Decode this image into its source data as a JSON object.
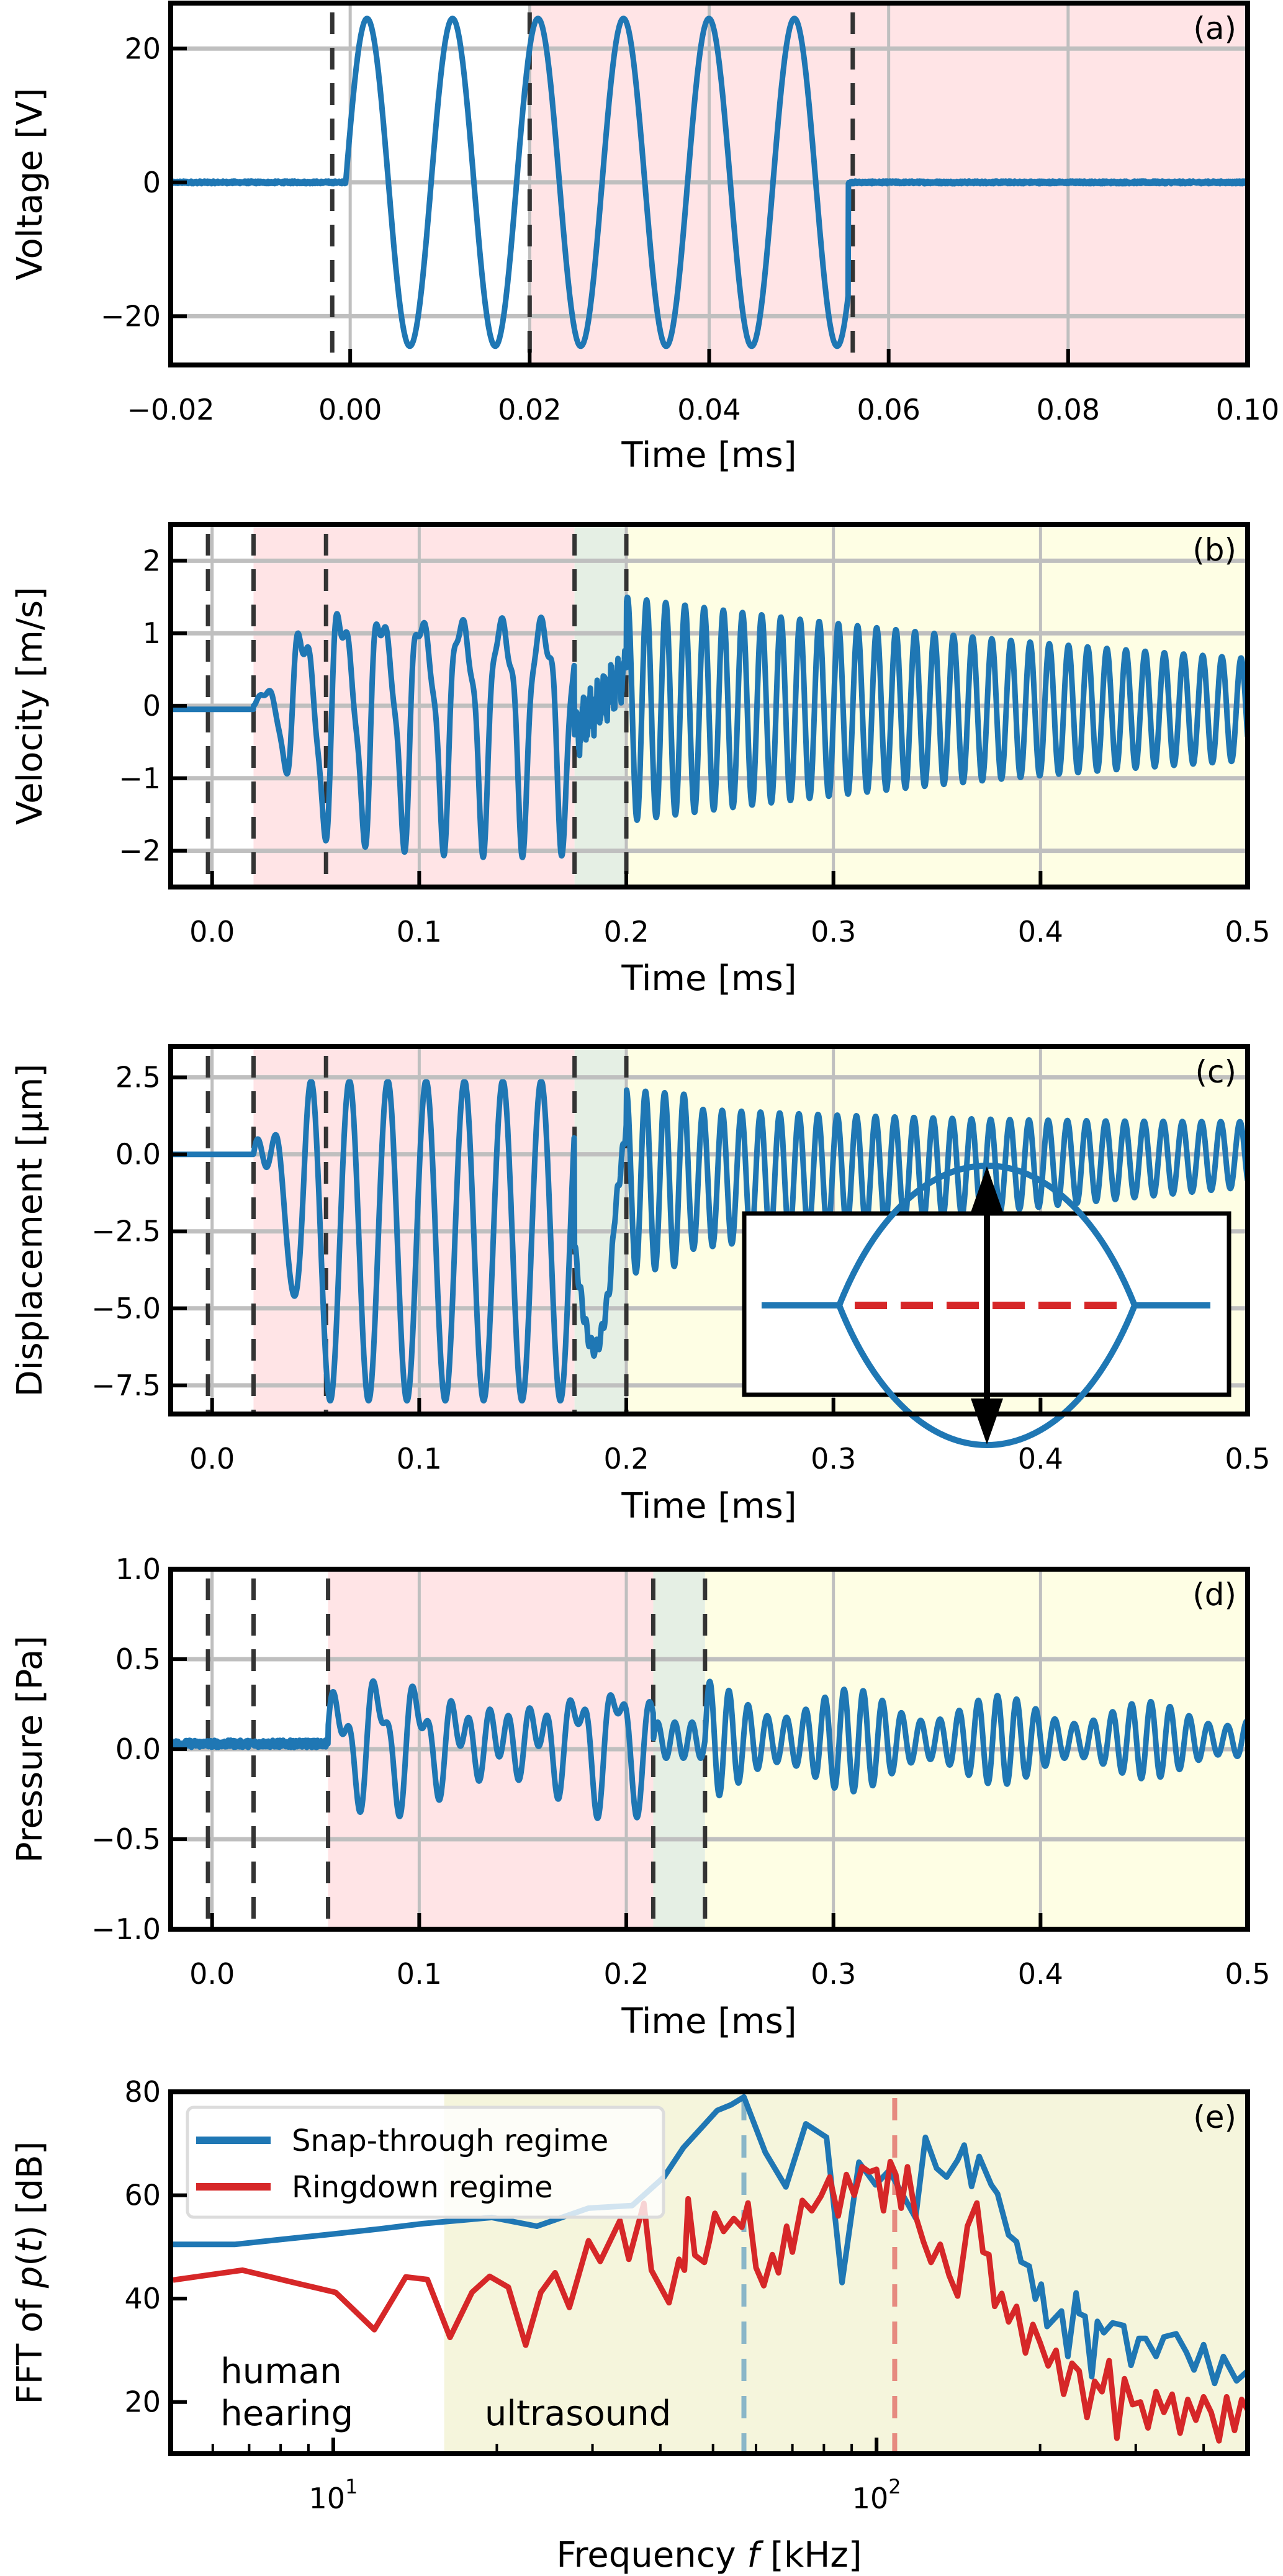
{
  "figure": {
    "colors": {
      "signal": "#1f77b4",
      "ringdown": "#d62728",
      "grid": "#bfbfbf",
      "vline": "#333333",
      "drive_region": "#ffe4e6",
      "snap_region": "#e5efe4",
      "ring_region": "#fefee4",
      "ultrasound_region": "#f5f5dc"
    }
  },
  "chart_data": [
    {
      "id": "a",
      "type": "line",
      "panel_label": "(a)",
      "xlabel": "Time [ms]",
      "ylabel": "Voltage [V]",
      "xlim": [
        -0.02,
        0.1
      ],
      "ylim": [
        -27.3,
        26.8
      ],
      "xticks": [
        -0.02,
        0.0,
        0.02,
        0.04,
        0.06,
        0.08,
        0.1
      ],
      "xtick_labels": [
        "−0.02",
        "0.00",
        "0.02",
        "0.04",
        "0.06",
        "0.08",
        "0.10"
      ],
      "yticks": [
        -20,
        0,
        20
      ],
      "ytick_labels": [
        "−20",
        "0",
        "20"
      ],
      "grid": true,
      "vlines": [
        -0.002,
        0.02,
        0.056
      ],
      "regions": [
        {
          "from": 0.02,
          "to": 0.1,
          "kind": "drive_region"
        }
      ],
      "series": [
        {
          "name": "voltage",
          "kind": "burst",
          "t_start": -0.0005,
          "t_end": 0.0555,
          "frequency_khz": 105,
          "amplitude": 24.5,
          "baseline": 0
        }
      ]
    },
    {
      "id": "b",
      "type": "line",
      "panel_label": "(b)",
      "xlabel": "Time [ms]",
      "ylabel": "Velocity [m/s]",
      "xlim": [
        -0.02,
        0.5
      ],
      "ylim": [
        -2.5,
        2.5
      ],
      "xticks": [
        0.0,
        0.1,
        0.2,
        0.3,
        0.4,
        0.5
      ],
      "xtick_labels": [
        "0.0",
        "0.1",
        "0.2",
        "0.3",
        "0.4",
        "0.5"
      ],
      "yticks": [
        -2,
        -1,
        0,
        1,
        2
      ],
      "ytick_labels": [
        "−2",
        "−1",
        "0",
        "1",
        "2"
      ],
      "grid": true,
      "vlines": [
        -0.002,
        0.02,
        0.055,
        0.175,
        0.2
      ],
      "regions": [
        {
          "from": 0.02,
          "to": 0.175,
          "kind": "drive_region"
        },
        {
          "from": 0.175,
          "to": 0.2,
          "kind": "snap_region"
        },
        {
          "from": 0.2,
          "to": 0.5,
          "kind": "ring_region"
        }
      ],
      "series": [
        {
          "name": "velocity",
          "kind": "response",
          "baseline": -0.05,
          "onset": 0.02,
          "drive_end": 0.175,
          "snap_end": 0.2,
          "drive_freq_khz": 52,
          "drive_harmonic_khz": 105,
          "drive_amp": 1.4,
          "harmonic_amp": 0.45,
          "snap_level": 0.15,
          "snap_amp": 0.3,
          "ring_freq_khz": 108,
          "ring_amp": 1.55,
          "ring_decay_ms": 0.38,
          "ring_offset": -0.05
        }
      ]
    },
    {
      "id": "c",
      "type": "line",
      "panel_label": "(c)",
      "xlabel": "Time [ms]",
      "ylabel": "Displacement [μm]",
      "xlim": [
        -0.02,
        0.5
      ],
      "ylim": [
        -8.43,
        3.5
      ],
      "xticks": [
        0.0,
        0.1,
        0.2,
        0.3,
        0.4,
        0.5
      ],
      "xtick_labels": [
        "0.0",
        "0.1",
        "0.2",
        "0.3",
        "0.4",
        "0.5"
      ],
      "yticks": [
        -7.5,
        -5.0,
        -2.5,
        0.0,
        2.5
      ],
      "ytick_labels": [
        "−7.5",
        "−5.0",
        "−2.5",
        "0.0",
        "2.5"
      ],
      "grid": true,
      "vlines": [
        -0.002,
        0.02,
        0.055,
        0.175,
        0.2
      ],
      "regions": [
        {
          "from": 0.02,
          "to": 0.175,
          "kind": "drive_region"
        },
        {
          "from": 0.175,
          "to": 0.2,
          "kind": "snap_region"
        },
        {
          "from": 0.2,
          "to": 0.5,
          "kind": "ring_region"
        }
      ],
      "series": [
        {
          "name": "displacement",
          "kind": "displacement",
          "baseline": 0.0,
          "onset": 0.02,
          "drive_end": 0.175,
          "snap_end": 0.2,
          "drive_freq_khz": 54,
          "drive_center": -2.8,
          "drive_amp": 5.2,
          "snap_min": -6.3,
          "ring_freq_khz": 108,
          "ring_amp": 2.5,
          "ring_center_start": -0.9,
          "ring_center_end": 0.0,
          "ring_decay_ms": 0.35
        }
      ],
      "inset": {
        "description": "buckled beam schematic: two curved states with flat ends, red dashed midline, double-headed vertical arrow",
        "beam_color": "#1f77b4",
        "midline_color": "#d62728",
        "arrow_color": "#000000"
      }
    },
    {
      "id": "d",
      "type": "line",
      "panel_label": "(d)",
      "xlabel": "Time [ms]",
      "ylabel": "Pressure [Pa]",
      "xlim": [
        -0.02,
        0.5
      ],
      "ylim": [
        -1.0,
        1.0
      ],
      "xticks": [
        0.0,
        0.1,
        0.2,
        0.3,
        0.4,
        0.5
      ],
      "xtick_labels": [
        "0.0",
        "0.1",
        "0.2",
        "0.3",
        "0.4",
        "0.5"
      ],
      "yticks": [
        -1.0,
        -0.5,
        0.0,
        0.5,
        1.0
      ],
      "ytick_labels": [
        "−1.0",
        "−0.5",
        "0.0",
        "0.5",
        "1.0"
      ],
      "grid": true,
      "vlines": [
        -0.002,
        0.02,
        0.056,
        0.213,
        0.238
      ],
      "regions": [
        {
          "from": 0.056,
          "to": 0.213,
          "kind": "drive_region"
        },
        {
          "from": 0.213,
          "to": 0.238,
          "kind": "snap_region"
        },
        {
          "from": 0.238,
          "to": 0.5,
          "kind": "ring_region"
        }
      ],
      "series": [
        {
          "name": "pressure",
          "kind": "pressure",
          "baseline": 0.03,
          "onset": 0.056,
          "drive_end": 0.213,
          "snap_end": 0.238,
          "drive_freq_khz": 52,
          "drive_harmonic_khz": 105,
          "drive_amp": 0.3,
          "harmonic_amp": 0.15,
          "snap_amp": 0.1,
          "ring_freq_khz": 108,
          "ring_amp": 0.33,
          "ring_decay_ms": 0.5,
          "beat_freq_khz": 14
        }
      ]
    },
    {
      "id": "e",
      "type": "line",
      "panel_label": "(e)",
      "xlabel": "Frequency f [kHz]",
      "xlabel_parts": [
        "Frequency ",
        "f",
        " [kHz]"
      ],
      "ylabel": "FFT of p(t) [dB]",
      "ylabel_parts": [
        "FFT of ",
        "p",
        "(",
        "t",
        ") [dB]"
      ],
      "xscale": "log",
      "xlim": [
        5.02,
        482
      ],
      "ylim": [
        10,
        80
      ],
      "xticks": [
        10,
        100
      ],
      "xtick_labels": [
        {
          "base": "10",
          "exp": "1"
        },
        {
          "base": "10",
          "exp": "2"
        }
      ],
      "yticks": [
        20,
        40,
        60,
        80
      ],
      "ytick_labels": [
        "20",
        "40",
        "60",
        "80"
      ],
      "grid": false,
      "regions": [
        {
          "from": 16,
          "to": 482,
          "kind": "ultrasound_region"
        }
      ],
      "vlines_colored": [
        {
          "x": 57,
          "color": "#8ab6c8"
        },
        {
          "x": 108,
          "color": "#e68a80"
        }
      ],
      "annotations": [
        {
          "lines": [
            "human",
            "hearing"
          ],
          "x": 6.2,
          "y": 15.5
        },
        {
          "lines": [
            "ultrasound"
          ],
          "x": 19,
          "y": 15.5
        }
      ],
      "legend": {
        "placement": "upper-left",
        "entries": [
          {
            "label": "Snap-through regime",
            "color": "#1f77b4"
          },
          {
            "label": "Ringdown regime",
            "color": "#d62728"
          }
        ]
      },
      "series": [
        {
          "name": "Snap-through regime",
          "color": "#1f77b4",
          "x": [
            5.02,
            6.6,
            8.1,
            10.0,
            12.2,
            14.6,
            19.6,
            23.7,
            29.5,
            35.5,
            40.6,
            44.1,
            50.9,
            54.0,
            57.0,
            62.4,
            68.1,
            74.1,
            80.9,
            86.4,
            92.8,
            99.6,
            105.5,
            118.0,
            123.0,
            129.0,
            134.6,
            141.0,
            145.0,
            149.6,
            154.5,
            162.6,
            167.0,
            175.0,
            181.0,
            184.5,
            191.0,
            196.0,
            201.0,
            206.0,
            219.0,
            225.0,
            233.0,
            236.0,
            242.0,
            249.0,
            255.0,
            262.0,
            272.0,
            285.0,
            294.0,
            304.0,
            313.0,
            327.0,
            338.0,
            356.0,
            372.0,
            384.0,
            400.0,
            419.0,
            435.0,
            460.0,
            482.0
          ],
          "y": [
            50.5,
            50.5,
            51.5,
            52.5,
            53.5,
            54.5,
            55.7,
            54.0,
            57.5,
            58.0,
            63.5,
            69.2,
            76.4,
            77.5,
            79.0,
            68.3,
            61.6,
            73.8,
            71.2,
            43.1,
            66.4,
            62.0,
            64.8,
            55.6,
            71.2,
            65.2,
            63.5,
            66.8,
            69.7,
            61.7,
            67.5,
            62.0,
            60.3,
            52.3,
            51.0,
            47.1,
            46.3,
            39.9,
            42.8,
            34.6,
            37.6,
            28.8,
            41.1,
            37.1,
            36.6,
            24.9,
            35.6,
            33.4,
            35.3,
            34.8,
            27.1,
            32.3,
            32.3,
            28.8,
            32.6,
            33.2,
            29.6,
            26.2,
            31.1,
            23.6,
            28.8,
            24.1,
            26.0
          ]
        },
        {
          "name": "Ringdown regime",
          "color": "#d62728",
          "x": [
            5.07,
            6.8,
            8.7,
            10.1,
            11.9,
            13.6,
            14.9,
            16.4,
            18.0,
            19.4,
            21.0,
            22.6,
            24.1,
            25.6,
            27.2,
            29.5,
            31.0,
            33.7,
            35.0,
            37.3,
            38.5,
            41.5,
            43.3,
            44.3,
            45.0,
            46.3,
            48.2,
            49.2,
            50.4,
            52.3,
            54.6,
            56.5,
            58.0,
            60.0,
            62.0,
            64.3,
            66.0,
            68.3,
            70.0,
            73.0,
            76.0,
            79.0,
            82.0,
            85.0,
            88.0,
            91.0,
            94.0,
            97.0,
            100.0,
            103.0,
            106.0,
            108.5,
            111.0,
            114.0,
            118.0,
            122.0,
            126.0,
            131.0,
            136.0,
            141.0,
            147.0,
            153.0,
            157.0,
            161.0,
            165.0,
            170.0,
            175.0,
            181.0,
            188.0,
            194.0,
            200.0,
            207.0,
            214.0,
            221.0,
            229.0,
            236.0,
            244.0,
            252.0,
            260.0,
            268.0,
            277.0,
            286.0,
            296.0,
            306.0,
            316.0,
            327.0,
            338.0,
            350.0,
            362.0,
            374.0,
            387.0,
            400.0,
            413.0,
            427.0,
            441.0,
            456.0,
            470.0,
            482.0
          ],
          "y": [
            43.6,
            45.5,
            42.8,
            41.2,
            34.0,
            44.2,
            43.7,
            32.5,
            41.2,
            44.3,
            42.2,
            31.0,
            41.2,
            45.0,
            38.3,
            51.2,
            47.2,
            55.1,
            47.6,
            58.4,
            45.5,
            39.2,
            47.6,
            45.5,
            59.3,
            48.4,
            47.0,
            51.0,
            56.5,
            53.0,
            55.5,
            53.8,
            58.5,
            46.0,
            42.5,
            48.5,
            45.0,
            54.0,
            49.0,
            59.0,
            57.0,
            59.8,
            63.5,
            56.0,
            64.0,
            60.0,
            65.5,
            64.5,
            65.0,
            57.0,
            66.5,
            64.0,
            57.5,
            65.5,
            56.0,
            51.0,
            47.0,
            50.5,
            44.5,
            40.5,
            54.0,
            58.5,
            49.0,
            48.5,
            38.5,
            41.0,
            35.5,
            38.5,
            29.5,
            35.0,
            31.5,
            27.0,
            30.0,
            21.5,
            27.5,
            26.0,
            17.0,
            24.0,
            22.0,
            28.0,
            13.0,
            24.5,
            19.5,
            20.0,
            15.0,
            22.0,
            18.0,
            21.5,
            14.0,
            20.5,
            16.5,
            21.0,
            18.0,
            12.5,
            21.0,
            14.5,
            20.5,
            18.5
          ]
        }
      ]
    }
  ]
}
